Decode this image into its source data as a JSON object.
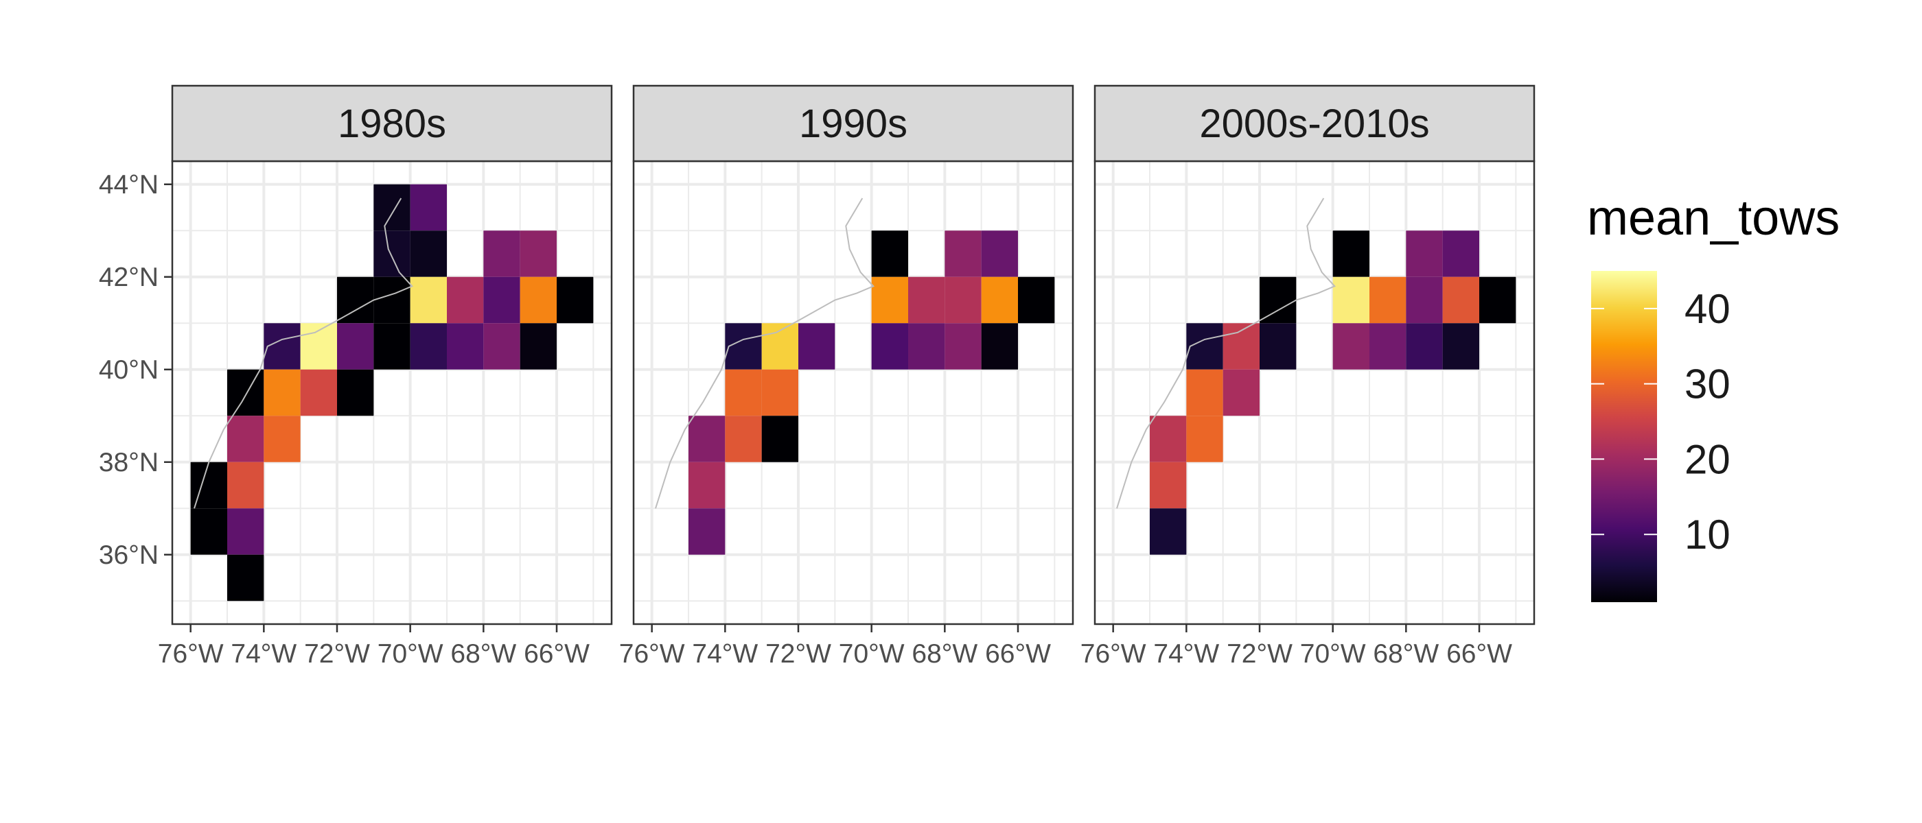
{
  "colors": {
    "background": "#ffffff",
    "panel_border": "#333333",
    "grid": "#ebebeb",
    "strip_fill": "#d9d9d9",
    "coastline": "#bdbdbd",
    "palette": "inferno",
    "palette_stops": [
      "#000004",
      "#1b0c41",
      "#4a0c6b",
      "#781c6d",
      "#a52c60",
      "#cf4446",
      "#ed6925",
      "#fb9b06",
      "#f7d13d",
      "#fcffa4"
    ]
  },
  "chart_data": {
    "type": "heatmap",
    "title": "",
    "xlabel": "",
    "ylabel": "",
    "x_ticks": [
      -76,
      -74,
      -72,
      -70,
      -68,
      -66
    ],
    "x_tick_labels": [
      "76°W",
      "74°W",
      "72°W",
      "70°W",
      "68°W",
      "66°W"
    ],
    "y_ticks": [
      36,
      38,
      40,
      42,
      44
    ],
    "y_tick_labels": [
      "36°N",
      "38°N",
      "40°N",
      "42°N",
      "44°N"
    ],
    "xlim": [
      -76.5,
      -64.5
    ],
    "ylim": [
      34.5,
      44.5
    ],
    "cell_size_degrees": 1,
    "grid": true,
    "legend": {
      "title": "mean_tows",
      "position": "right",
      "ticks": [
        10,
        20,
        30,
        40
      ],
      "range": [
        1,
        45
      ]
    },
    "value_key": "[lon_west_edge, lat_south_edge, mean_tows]",
    "panels": [
      {
        "label": "1980s",
        "cells": [
          [
            -71,
            43,
            3
          ],
          [
            -70,
            43,
            12
          ],
          [
            -71,
            42,
            4
          ],
          [
            -70,
            42,
            3
          ],
          [
            -68,
            42,
            16
          ],
          [
            -67,
            42,
            18
          ],
          [
            -72,
            41,
            1
          ],
          [
            -71,
            41,
            1
          ],
          [
            -70,
            41,
            42
          ],
          [
            -69,
            41,
            21
          ],
          [
            -68,
            41,
            12
          ],
          [
            -67,
            41,
            33
          ],
          [
            -66,
            41,
            1
          ],
          [
            -74,
            40,
            8
          ],
          [
            -73,
            40,
            44
          ],
          [
            -72,
            40,
            13
          ],
          [
            -71,
            40,
            1
          ],
          [
            -70,
            40,
            8
          ],
          [
            -69,
            40,
            12
          ],
          [
            -68,
            40,
            16
          ],
          [
            -67,
            40,
            2
          ],
          [
            -75,
            39,
            1
          ],
          [
            -74,
            39,
            33
          ],
          [
            -73,
            39,
            26
          ],
          [
            -72,
            39,
            1
          ],
          [
            -75,
            38,
            20
          ],
          [
            -74,
            38,
            30
          ],
          [
            -76,
            37,
            1
          ],
          [
            -75,
            37,
            27
          ],
          [
            -76,
            36,
            1
          ],
          [
            -75,
            36,
            13
          ],
          [
            -75,
            35,
            1
          ]
        ]
      },
      {
        "label": "1990s",
        "cells": [
          [
            -70,
            42,
            1
          ],
          [
            -68,
            42,
            18
          ],
          [
            -67,
            42,
            14
          ],
          [
            -70,
            41,
            34
          ],
          [
            -69,
            41,
            22
          ],
          [
            -68,
            41,
            22
          ],
          [
            -67,
            41,
            34
          ],
          [
            -66,
            41,
            1
          ],
          [
            -74,
            40,
            6
          ],
          [
            -73,
            40,
            40
          ],
          [
            -72,
            40,
            12
          ],
          [
            -70,
            40,
            11
          ],
          [
            -69,
            40,
            14
          ],
          [
            -68,
            40,
            17
          ],
          [
            -67,
            40,
            2
          ],
          [
            -74,
            39,
            30
          ],
          [
            -73,
            39,
            30
          ],
          [
            -75,
            38,
            17
          ],
          [
            -74,
            38,
            28
          ],
          [
            -73,
            38,
            1
          ],
          [
            -75,
            37,
            21
          ],
          [
            -75,
            36,
            14
          ]
        ]
      },
      {
        "label": "2000s-2010s",
        "cells": [
          [
            -70,
            42,
            1
          ],
          [
            -68,
            42,
            16
          ],
          [
            -67,
            42,
            13
          ],
          [
            -72,
            41,
            1
          ],
          [
            -70,
            41,
            43
          ],
          [
            -69,
            41,
            31
          ],
          [
            -68,
            41,
            15
          ],
          [
            -67,
            41,
            28
          ],
          [
            -66,
            41,
            1
          ],
          [
            -74,
            40,
            5
          ],
          [
            -73,
            40,
            24
          ],
          [
            -72,
            40,
            4
          ],
          [
            -70,
            40,
            18
          ],
          [
            -69,
            40,
            15
          ],
          [
            -68,
            40,
            9
          ],
          [
            -67,
            40,
            4
          ],
          [
            -74,
            39,
            30
          ],
          [
            -73,
            39,
            21
          ],
          [
            -75,
            38,
            23
          ],
          [
            -74,
            38,
            30
          ],
          [
            -75,
            37,
            26
          ],
          [
            -75,
            36,
            5
          ]
        ]
      }
    ],
    "coastline": [
      [
        -75.9,
        37.0
      ],
      [
        -75.5,
        38.0
      ],
      [
        -75.1,
        38.7
      ],
      [
        -74.6,
        39.3
      ],
      [
        -74.1,
        40.0
      ],
      [
        -73.9,
        40.5
      ],
      [
        -73.5,
        40.65
      ],
      [
        -72.6,
        40.8
      ],
      [
        -71.9,
        41.1
      ],
      [
        -71.0,
        41.5
      ],
      [
        -70.4,
        41.65
      ],
      [
        -69.95,
        41.8
      ],
      [
        -70.3,
        42.1
      ],
      [
        -70.6,
        42.6
      ],
      [
        -70.7,
        43.1
      ],
      [
        -70.25,
        43.7
      ]
    ]
  }
}
